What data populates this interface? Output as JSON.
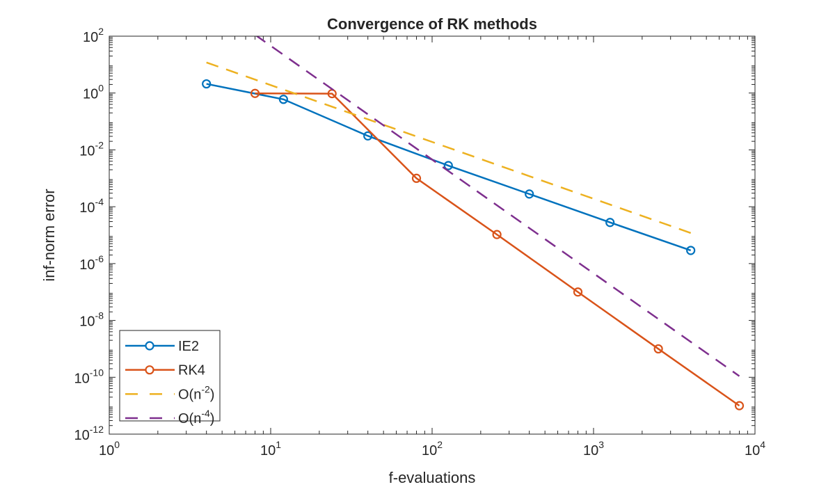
{
  "chart_data": {
    "type": "line",
    "title": "Convergence of RK methods",
    "xlabel": "f-evaluations",
    "ylabel": "inf-norm error",
    "xscale": "log",
    "yscale": "log",
    "xlim": [
      1,
      10000
    ],
    "ylim": [
      1e-12,
      100
    ],
    "x_ticks": [
      {
        "exp": "0"
      },
      {
        "exp": "1"
      },
      {
        "exp": "2"
      },
      {
        "exp": "3"
      },
      {
        "exp": "4"
      }
    ],
    "y_ticks": [
      {
        "exp": "-12"
      },
      {
        "exp": "-10"
      },
      {
        "exp": "-8"
      },
      {
        "exp": "-6"
      },
      {
        "exp": "-4"
      },
      {
        "exp": "-2"
      },
      {
        "exp": "0"
      },
      {
        "exp": "2"
      }
    ],
    "tick_base": "10",
    "grid": false,
    "legend_position": "bottom-left",
    "series": [
      {
        "name": "IE2",
        "color": "#0072BD",
        "style": "solid",
        "marker": "circle",
        "x": [
          4,
          12,
          40,
          126,
          400,
          1265,
          4000
        ],
        "y": [
          2.1,
          0.6,
          0.031,
          0.0028,
          0.00028,
          2.8e-05,
          2.9e-06
        ]
      },
      {
        "name": "RK4",
        "color": "#D95319",
        "style": "solid",
        "marker": "circle",
        "x": [
          8,
          24,
          80,
          252,
          800,
          2520,
          8000
        ],
        "y": [
          0.97,
          0.95,
          0.001,
          1.05e-05,
          1e-07,
          1e-09,
          1e-11
        ]
      },
      {
        "name": "O(n^-2)",
        "label_base": "O(n",
        "label_exp": "-2",
        "label_end": ")",
        "color": "#EDB120",
        "style": "dashed",
        "marker": "none",
        "x": [
          4,
          4000
        ],
        "y": [
          11.9,
          1.19e-05
        ]
      },
      {
        "name": "O(n^-4)",
        "label_base": "O(n",
        "label_exp": "-4",
        "label_end": ")",
        "color": "#7E2F8E",
        "style": "dashed",
        "marker": "none",
        "x": [
          8,
          8000
        ],
        "y": [
          112,
          1.1e-10
        ]
      }
    ]
  }
}
